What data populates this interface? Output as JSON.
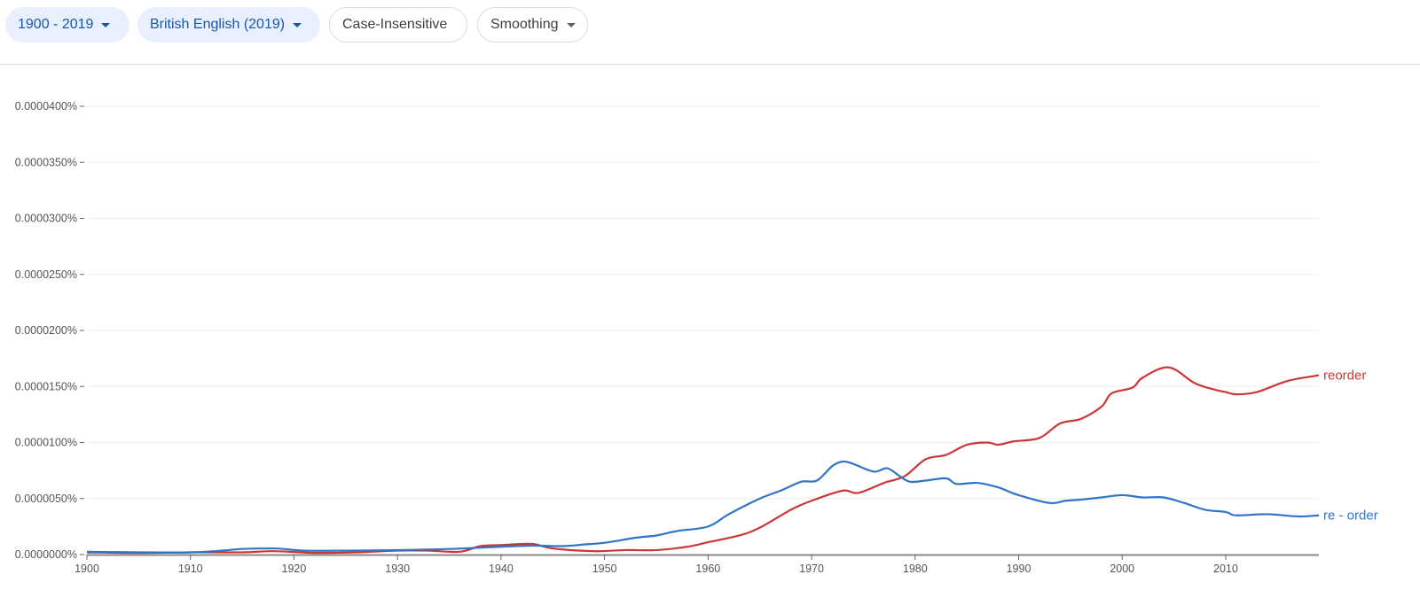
{
  "toolbar": {
    "year_range": "1900 - 2019",
    "corpus": "British English (2019)",
    "case": "Case-Insensitive",
    "smoothing": "Smoothing"
  },
  "chart_data": {
    "type": "line",
    "title": "",
    "xlabel": "",
    "ylabel": "",
    "xlim": [
      1900,
      2019
    ],
    "ylim": [
      0,
      4e-05
    ],
    "grid": true,
    "legend": "inline-right",
    "x_ticks": [
      1900,
      1910,
      1920,
      1930,
      1940,
      1950,
      1960,
      1970,
      1980,
      1990,
      2000,
      2010
    ],
    "x_tick_labels": [
      "1900",
      "1910",
      "1920",
      "1930",
      "1940",
      "1950",
      "1960",
      "1970",
      "1980",
      "1990",
      "2000",
      "2010"
    ],
    "y_ticks": [
      0,
      5e-06,
      1e-05,
      1.5e-05,
      2e-05,
      2.5e-05,
      3e-05,
      3.5e-05,
      4e-05
    ],
    "y_tick_labels": [
      "0.0000000%",
      "0.0000050%",
      "0.0000100%",
      "0.0000150%",
      "0.0000200%",
      "0.0000250%",
      "0.0000300%",
      "0.0000350%",
      "0.0000400%"
    ],
    "series": [
      {
        "name": "reorder",
        "color": "#cc3637",
        "x": [
          1900,
          1905,
          1910,
          1915,
          1918,
          1922,
          1926,
          1930,
          1933,
          1936,
          1938,
          1940,
          1943,
          1945,
          1949,
          1952,
          1955,
          1958,
          1960,
          1963,
          1965,
          1968,
          1970,
          1973,
          1974.5,
          1977,
          1979,
          1981,
          1983,
          1985,
          1987,
          1988,
          1989.5,
          1992,
          1994,
          1996,
          1998,
          1999,
          2001,
          2002,
          2004.5,
          2007,
          2009,
          2010,
          2011,
          2013,
          2016,
          2019
        ],
        "values": [
          2e-07,
          1.5e-07,
          2e-07,
          2e-07,
          3e-07,
          1.5e-07,
          2e-07,
          3.5e-07,
          3.5e-07,
          2.5e-07,
          7.5e-07,
          8.5e-07,
          9.5e-07,
          5.5e-07,
          3e-07,
          4e-07,
          4e-07,
          7e-07,
          1.1e-06,
          1.7e-06,
          2.4e-06,
          4e-06,
          4.8e-06,
          5.7e-06,
          5.5e-06,
          6.4e-06,
          7e-06,
          8.5e-06,
          8.9e-06,
          9.8e-06,
          1e-05,
          9.8e-06,
          1.01e-05,
          1.04e-05,
          1.17e-05,
          1.21e-05,
          1.32e-05,
          1.44e-05,
          1.49e-05,
          1.58e-05,
          1.67e-05,
          1.53e-05,
          1.47e-05,
          1.45e-05,
          1.43e-05,
          1.45e-05,
          1.55e-05,
          1.6e-05
        ]
      },
      {
        "name": "re - order",
        "color": "#2f74c5",
        "x": [
          1900,
          1905,
          1910,
          1913,
          1915,
          1918,
          1919,
          1921,
          1925,
          1930,
          1935,
          1940,
          1943,
          1946,
          1948,
          1950,
          1953,
          1955,
          1957,
          1960,
          1962,
          1965,
          1967,
          1969,
          1970.5,
          1972,
          1973,
          1974,
          1976,
          1977.3,
          1978.5,
          1979.5,
          1981,
          1983,
          1984,
          1986,
          1988,
          1990,
          1993,
          1994.5,
          1996,
          1998,
          2000,
          2002,
          2004,
          2006,
          2008,
          2010,
          2011,
          2014,
          2017,
          2019
        ],
        "values": [
          2.5e-07,
          2e-07,
          2e-07,
          3.5e-07,
          5e-07,
          5.5e-07,
          5e-07,
          3.5e-07,
          3.5e-07,
          4e-07,
          5e-07,
          7e-07,
          8e-07,
          7.5e-07,
          9e-07,
          1.05e-06,
          1.5e-06,
          1.7e-06,
          2.1e-06,
          2.5e-06,
          3.6e-06,
          5e-06,
          5.7e-06,
          6.5e-06,
          6.6e-06,
          7.9e-06,
          8.3e-06,
          8.1e-06,
          7.4e-06,
          7.7e-06,
          7e-06,
          6.5e-06,
          6.6e-06,
          6.8e-06,
          6.3e-06,
          6.4e-06,
          6e-06,
          5.3e-06,
          4.6e-06,
          4.8e-06,
          4.9e-06,
          5.1e-06,
          5.3e-06,
          5.1e-06,
          5.1e-06,
          4.6e-06,
          4e-06,
          3.8e-06,
          3.5e-06,
          3.6e-06,
          3.4e-06,
          3.5e-06
        ]
      }
    ]
  }
}
